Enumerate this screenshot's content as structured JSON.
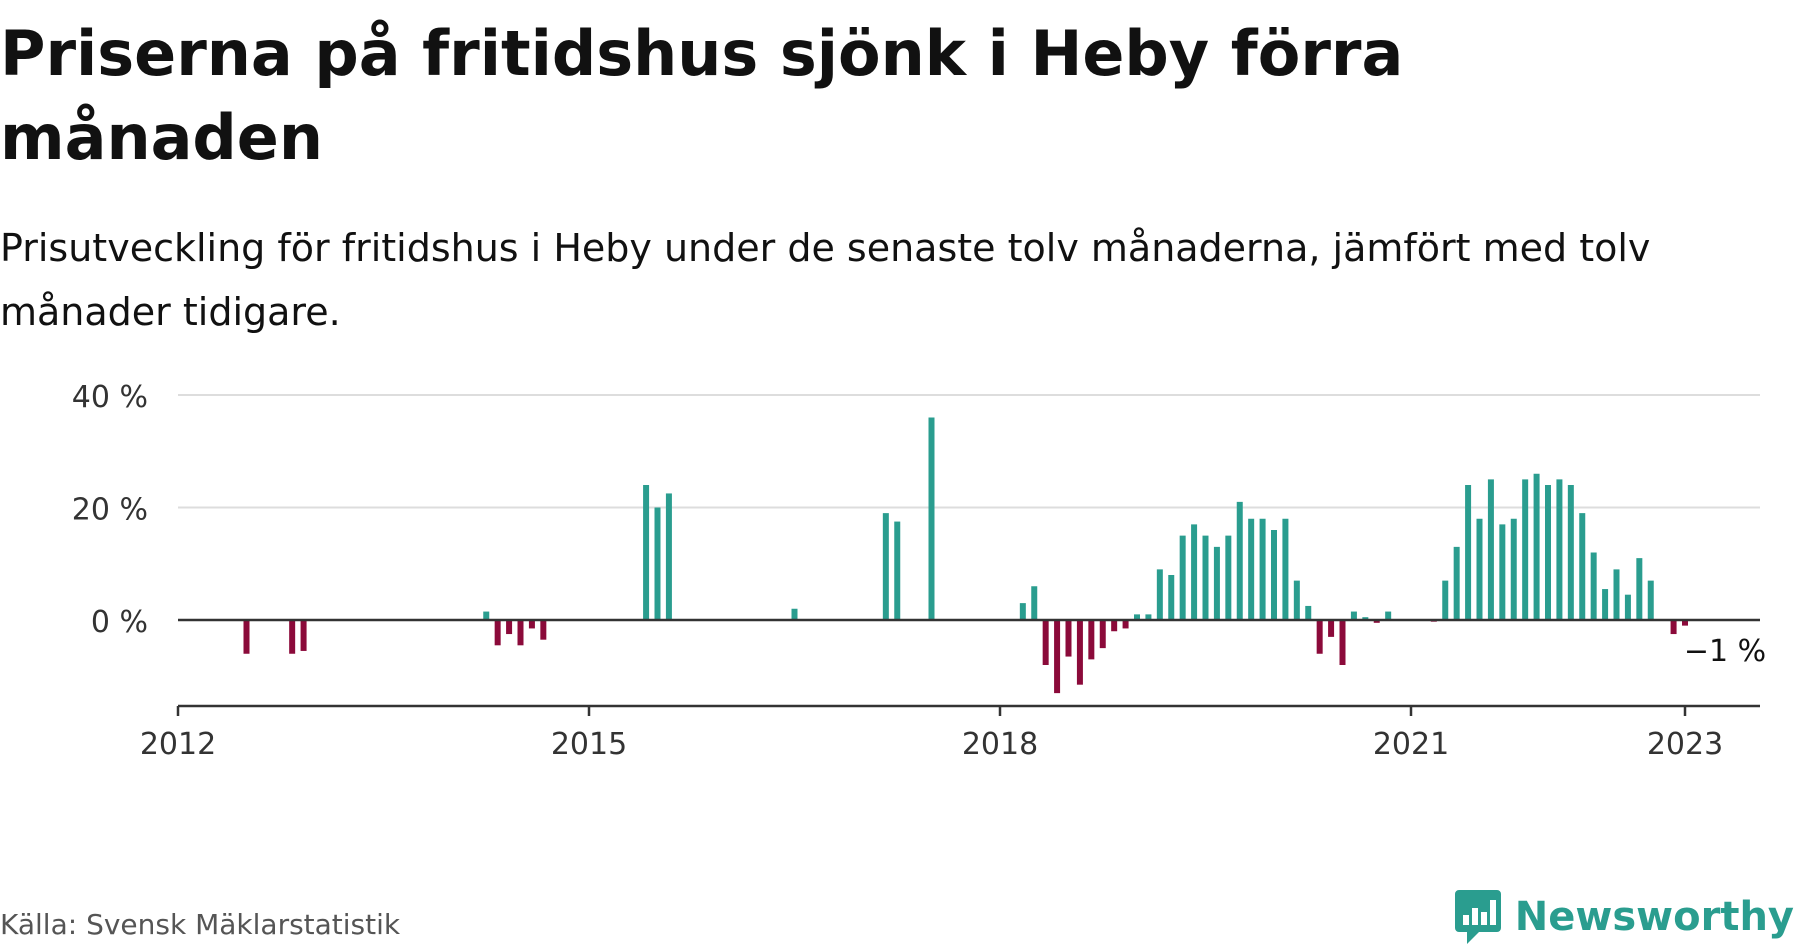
{
  "title": "Priserna på fritidshus sjönk i Heby förra månaden",
  "subtitle": "Prisutveckling för fritidshus i Heby under de senaste tolv månaderna, jämfört med tolv månader tidigare.",
  "source": "Källa: Svensk Mäklarstatistik",
  "brand": "Newsworthy",
  "colors": {
    "positive": "#2a9d8f",
    "negative": "#8b0a3a",
    "grid": "#dddddd",
    "axis": "#333333",
    "brand": "#2a9d8f"
  },
  "chart_data": {
    "type": "bar",
    "ylim": [
      -15,
      40
    ],
    "y_ticks": [
      {
        "value": 0,
        "label": "0 %"
      },
      {
        "value": 20,
        "label": "20 %"
      },
      {
        "value": 40,
        "label": "40 %"
      }
    ],
    "x_ticks": [
      {
        "value": 2012,
        "label": "2012"
      },
      {
        "value": 2015,
        "label": "2015"
      },
      {
        "value": 2018,
        "label": "2018"
      },
      {
        "value": 2021,
        "label": "2021"
      },
      {
        "value": 2023,
        "label": "2023"
      }
    ],
    "xlim": [
      2012,
      2023.58
    ],
    "grid": true,
    "last_value_label": "−1 %",
    "series": [
      {
        "x": "2012-07",
        "y": -6
      },
      {
        "x": "2012-11",
        "y": -6
      },
      {
        "x": "2012-12",
        "y": -5.5
      },
      {
        "x": "2014-04",
        "y": 1.5
      },
      {
        "x": "2014-05",
        "y": -4.5
      },
      {
        "x": "2014-06",
        "y": -2.5
      },
      {
        "x": "2014-07",
        "y": -4.5
      },
      {
        "x": "2014-08",
        "y": -1.5
      },
      {
        "x": "2014-09",
        "y": -3.5
      },
      {
        "x": "2015-06",
        "y": 24
      },
      {
        "x": "2015-07",
        "y": 20
      },
      {
        "x": "2015-08",
        "y": 22.5
      },
      {
        "x": "2016-07",
        "y": 2
      },
      {
        "x": "2017-03",
        "y": 19
      },
      {
        "x": "2017-04",
        "y": 17.5
      },
      {
        "x": "2017-07",
        "y": 36
      },
      {
        "x": "2018-03",
        "y": 3
      },
      {
        "x": "2018-04",
        "y": 6
      },
      {
        "x": "2018-05",
        "y": -8
      },
      {
        "x": "2018-06",
        "y": -13
      },
      {
        "x": "2018-07",
        "y": -6.5
      },
      {
        "x": "2018-08",
        "y": -11.5
      },
      {
        "x": "2018-09",
        "y": -7
      },
      {
        "x": "2018-10",
        "y": -5
      },
      {
        "x": "2018-11",
        "y": -2
      },
      {
        "x": "2018-12",
        "y": -1.5
      },
      {
        "x": "2019-01",
        "y": 1
      },
      {
        "x": "2019-02",
        "y": 1
      },
      {
        "x": "2019-03",
        "y": 9
      },
      {
        "x": "2019-04",
        "y": 8
      },
      {
        "x": "2019-05",
        "y": 15
      },
      {
        "x": "2019-06",
        "y": 17
      },
      {
        "x": "2019-07",
        "y": 15
      },
      {
        "x": "2019-08",
        "y": 13
      },
      {
        "x": "2019-09",
        "y": 15
      },
      {
        "x": "2019-10",
        "y": 21
      },
      {
        "x": "2019-11",
        "y": 18
      },
      {
        "x": "2019-12",
        "y": 18
      },
      {
        "x": "2020-01",
        "y": 16
      },
      {
        "x": "2020-02",
        "y": 18
      },
      {
        "x": "2020-03",
        "y": 7
      },
      {
        "x": "2020-04",
        "y": 2.5
      },
      {
        "x": "2020-05",
        "y": -6
      },
      {
        "x": "2020-06",
        "y": -3
      },
      {
        "x": "2020-07",
        "y": -8
      },
      {
        "x": "2020-08",
        "y": 1.5
      },
      {
        "x": "2020-09",
        "y": 0.5
      },
      {
        "x": "2020-10",
        "y": -0.5
      },
      {
        "x": "2020-11",
        "y": 1.5
      },
      {
        "x": "2021-03",
        "y": -0.3
      },
      {
        "x": "2021-04",
        "y": 7
      },
      {
        "x": "2021-05",
        "y": 13
      },
      {
        "x": "2021-06",
        "y": 24
      },
      {
        "x": "2021-07",
        "y": 18
      },
      {
        "x": "2021-08",
        "y": 25
      },
      {
        "x": "2021-09",
        "y": 17
      },
      {
        "x": "2021-10",
        "y": 18
      },
      {
        "x": "2021-11",
        "y": 25
      },
      {
        "x": "2021-12",
        "y": 26
      },
      {
        "x": "2022-01",
        "y": 24
      },
      {
        "x": "2022-02",
        "y": 25
      },
      {
        "x": "2022-03",
        "y": 24
      },
      {
        "x": "2022-04",
        "y": 19
      },
      {
        "x": "2022-05",
        "y": 12
      },
      {
        "x": "2022-06",
        "y": 5.5
      },
      {
        "x": "2022-07",
        "y": 9
      },
      {
        "x": "2022-08",
        "y": 4.5
      },
      {
        "x": "2022-09",
        "y": 11
      },
      {
        "x": "2022-10",
        "y": 7
      },
      {
        "x": "2022-12",
        "y": -2.5
      },
      {
        "x": "2023-01",
        "y": -1
      }
    ]
  }
}
